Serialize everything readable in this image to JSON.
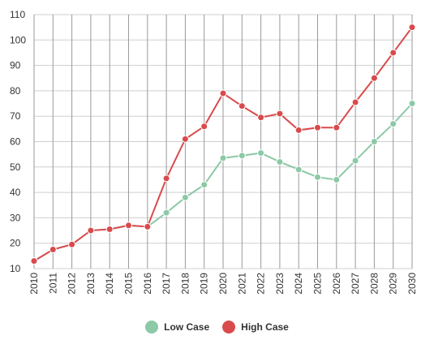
{
  "chart_data": {
    "type": "line",
    "title": "",
    "xlabel": "",
    "ylabel": "",
    "x": [
      "2010",
      "2011",
      "2012",
      "2013",
      "2014",
      "2015",
      "2016",
      "2017",
      "2018",
      "2019",
      "2020",
      "2021",
      "2022",
      "2023",
      "2024",
      "2025",
      "2026",
      "2027",
      "2028",
      "2029",
      "2030"
    ],
    "ylim": [
      10,
      110
    ],
    "yticks": [
      10,
      20,
      30,
      40,
      50,
      60,
      70,
      80,
      90,
      100,
      110
    ],
    "grid": true,
    "legend_position": "bottom",
    "series": [
      {
        "name": "Low Case",
        "color": "#8cc9a6",
        "values": [
          13,
          17.5,
          19.5,
          25,
          25.5,
          27,
          26.5,
          32,
          38,
          43,
          53.5,
          54.5,
          55.5,
          52,
          49,
          46,
          45,
          52.5,
          60,
          67,
          75
        ]
      },
      {
        "name": "High Case",
        "color": "#d94a4c",
        "values": [
          13,
          17.5,
          19.5,
          25,
          25.5,
          27,
          26.5,
          45.5,
          61,
          66,
          79,
          74,
          69.5,
          71,
          64.5,
          65.5,
          65.5,
          75.5,
          85,
          95,
          105
        ]
      }
    ]
  }
}
